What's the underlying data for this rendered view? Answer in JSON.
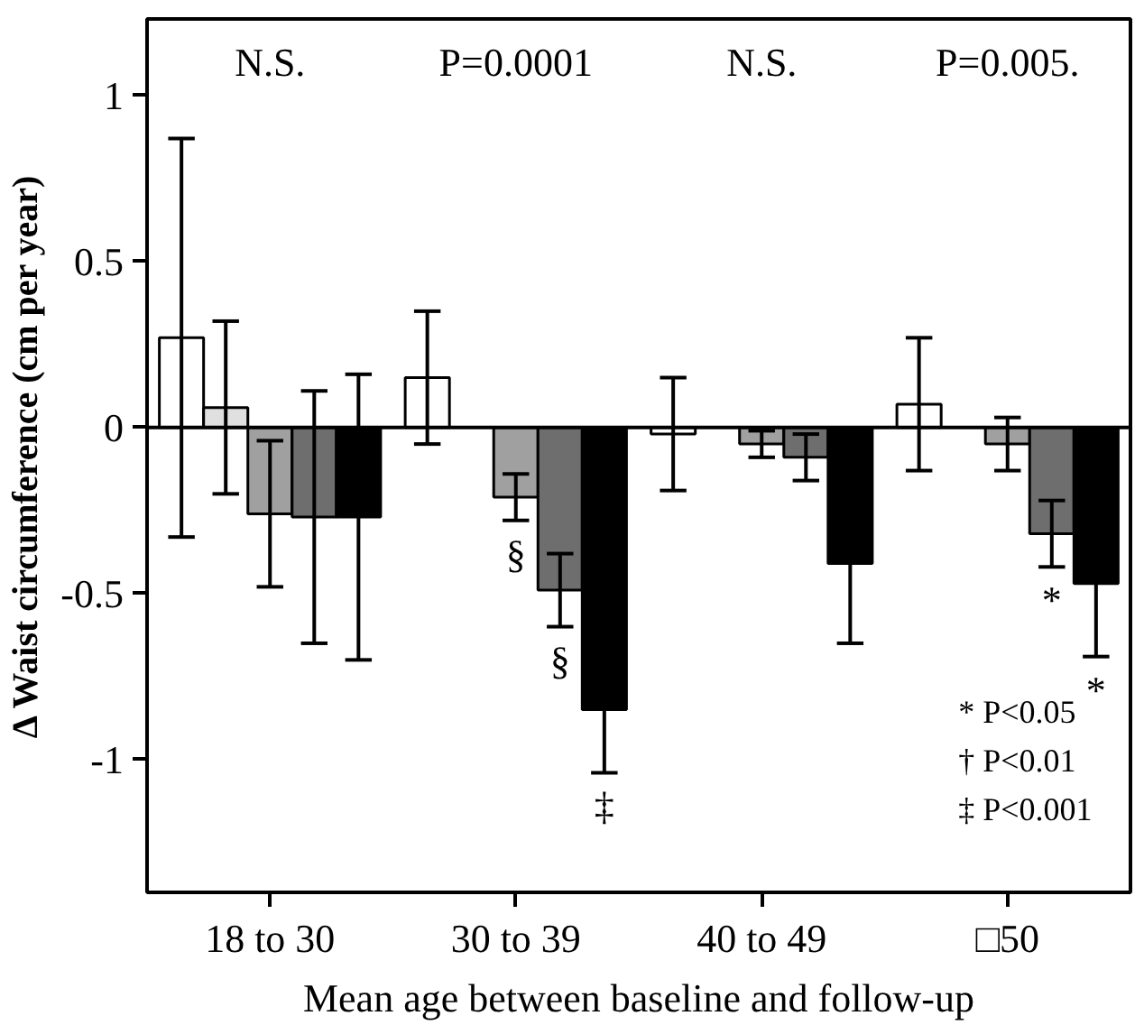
{
  "chart_data": {
    "type": "bar",
    "xlabel": "Mean age between baseline and follow-up",
    "ylabel": "Δ Waist circumference (cm per year)",
    "categories": [
      "18 to 30",
      "30 to 39",
      "40 to 49",
      "□50"
    ],
    "series": [
      {
        "color": "#ffffff",
        "values": [
          0.27,
          0.15,
          -0.02,
          0.07
        ],
        "errors": [
          0.6,
          0.2,
          0.17,
          0.2
        ]
      },
      {
        "color": "#e0e0e0",
        "values": [
          0.06,
          null,
          null,
          null
        ],
        "errors": [
          0.26,
          null,
          null,
          null
        ]
      },
      {
        "color": "#a0a0a0",
        "values": [
          -0.26,
          -0.21,
          -0.05,
          -0.05
        ],
        "errors": [
          0.22,
          0.07,
          0.04,
          0.08
        ],
        "value_labels": [
          null,
          "§",
          null,
          null
        ]
      },
      {
        "color": "#6e6e6e",
        "values": [
          -0.27,
          -0.49,
          -0.09,
          -0.32
        ],
        "errors": [
          0.38,
          0.11,
          0.07,
          0.1
        ],
        "value_labels": [
          null,
          "§",
          null,
          "*"
        ]
      },
      {
        "color": "#000000",
        "values": [
          -0.27,
          -0.85,
          -0.41,
          -0.47
        ],
        "errors": [
          0.43,
          0.19,
          0.24,
          0.22
        ],
        "value_labels": [
          null,
          "‡",
          null,
          "*"
        ]
      }
    ],
    "ylim": [
      -1.4,
      1.23
    ],
    "yticks": [
      -1,
      -0.5,
      0,
      0.5,
      1
    ],
    "grid": false,
    "ref_lines": [
      {
        "axis": "y",
        "value": 0
      }
    ],
    "annotations": [
      "N.S.",
      "P=0.0001",
      "N.S.",
      "P=0.005.",
      "* P<0.05",
      "† P<0.01",
      "‡ P<0.001"
    ]
  }
}
